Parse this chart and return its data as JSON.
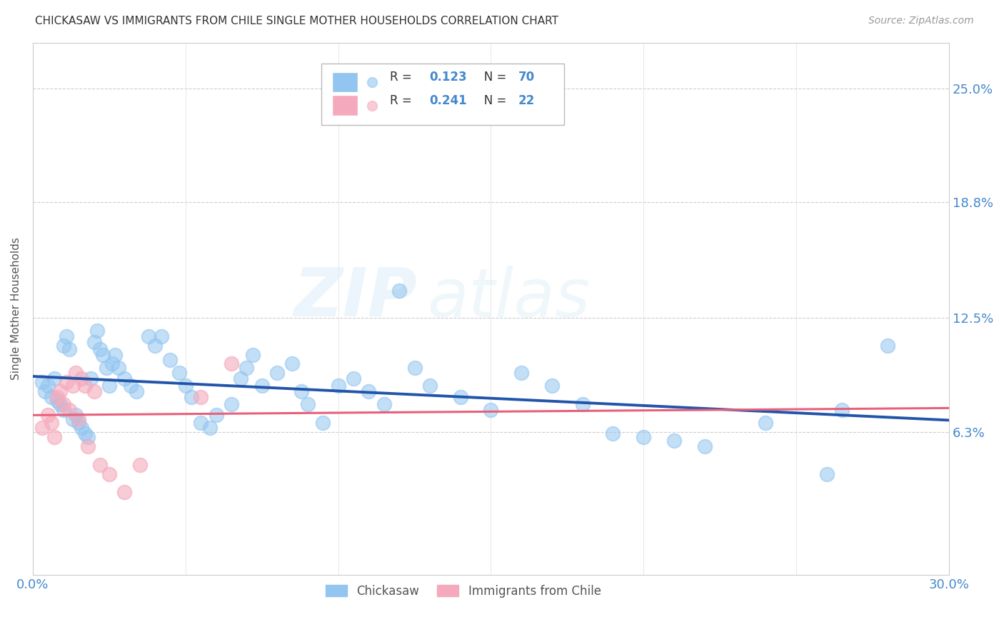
{
  "title": "CHICKASAW VS IMMIGRANTS FROM CHILE SINGLE MOTHER HOUSEHOLDS CORRELATION CHART",
  "source": "Source: ZipAtlas.com",
  "ylabel": "Single Mother Households",
  "ytick_labels": [
    "6.3%",
    "12.5%",
    "18.8%",
    "25.0%"
  ],
  "ytick_values": [
    0.063,
    0.125,
    0.188,
    0.25
  ],
  "xlim": [
    0.0,
    0.3
  ],
  "ylim": [
    -0.015,
    0.275
  ],
  "blue_color": "#92C5F0",
  "pink_color": "#F4AABC",
  "trendline_blue": "#2255AA",
  "trendline_pink": "#E8607A",
  "background_color": "#FFFFFF",
  "watermark_zip": "ZIP",
  "watermark_atlas": "atlas",
  "chickasaw_x": [
    0.003,
    0.004,
    0.005,
    0.006,
    0.007,
    0.008,
    0.009,
    0.01,
    0.01,
    0.011,
    0.012,
    0.013,
    0.014,
    0.015,
    0.016,
    0.017,
    0.018,
    0.019,
    0.02,
    0.021,
    0.022,
    0.023,
    0.024,
    0.025,
    0.026,
    0.027,
    0.028,
    0.03,
    0.032,
    0.034,
    0.038,
    0.04,
    0.042,
    0.045,
    0.048,
    0.05,
    0.052,
    0.055,
    0.058,
    0.06,
    0.065,
    0.068,
    0.07,
    0.072,
    0.075,
    0.08,
    0.085,
    0.088,
    0.09,
    0.095,
    0.1,
    0.105,
    0.11,
    0.115,
    0.12,
    0.125,
    0.13,
    0.14,
    0.15,
    0.16,
    0.17,
    0.18,
    0.19,
    0.2,
    0.21,
    0.22,
    0.24,
    0.26,
    0.265,
    0.28
  ],
  "chickasaw_y": [
    0.09,
    0.085,
    0.088,
    0.082,
    0.092,
    0.08,
    0.078,
    0.075,
    0.11,
    0.115,
    0.108,
    0.07,
    0.072,
    0.068,
    0.065,
    0.062,
    0.06,
    0.092,
    0.112,
    0.118,
    0.108,
    0.105,
    0.098,
    0.088,
    0.1,
    0.105,
    0.098,
    0.092,
    0.088,
    0.085,
    0.115,
    0.11,
    0.115,
    0.102,
    0.095,
    0.088,
    0.082,
    0.068,
    0.065,
    0.072,
    0.078,
    0.092,
    0.098,
    0.105,
    0.088,
    0.095,
    0.1,
    0.085,
    0.078,
    0.068,
    0.088,
    0.092,
    0.085,
    0.078,
    0.14,
    0.098,
    0.088,
    0.082,
    0.075,
    0.095,
    0.088,
    0.078,
    0.062,
    0.06,
    0.058,
    0.055,
    0.068,
    0.04,
    0.075,
    0.11
  ],
  "chile_x": [
    0.003,
    0.005,
    0.006,
    0.007,
    0.008,
    0.009,
    0.01,
    0.011,
    0.012,
    0.013,
    0.014,
    0.015,
    0.016,
    0.017,
    0.018,
    0.02,
    0.022,
    0.025,
    0.03,
    0.035,
    0.055,
    0.065
  ],
  "chile_y": [
    0.065,
    0.072,
    0.068,
    0.06,
    0.082,
    0.085,
    0.078,
    0.09,
    0.075,
    0.088,
    0.095,
    0.07,
    0.092,
    0.088,
    0.055,
    0.085,
    0.045,
    0.04,
    0.03,
    0.045,
    0.082,
    0.1
  ],
  "legend_items": [
    {
      "r": "0.123",
      "n": "70"
    },
    {
      "r": "0.241",
      "n": "22"
    }
  ]
}
